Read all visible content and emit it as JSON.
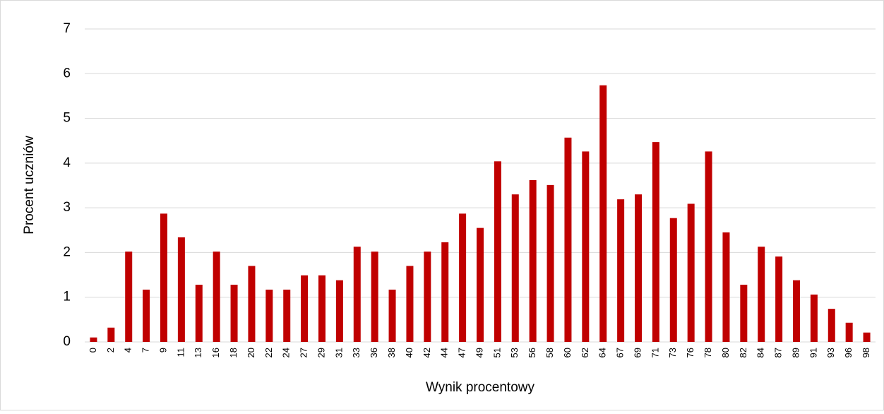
{
  "chart_data": {
    "type": "bar",
    "x_label": "Wynik procentowy",
    "y_label": "Procent uczniów",
    "categories": [
      "0",
      "2",
      "4",
      "7",
      "9",
      "11",
      "13",
      "16",
      "18",
      "20",
      "22",
      "24",
      "27",
      "29",
      "31",
      "33",
      "36",
      "38",
      "40",
      "42",
      "44",
      "47",
      "49",
      "51",
      "53",
      "56",
      "58",
      "60",
      "62",
      "64",
      "67",
      "69",
      "71",
      "73",
      "76",
      "78",
      "80",
      "82",
      "84",
      "87",
      "89",
      "91",
      "93",
      "96",
      "98"
    ],
    "values": [
      0.1,
      0.32,
      2.02,
      1.17,
      2.87,
      2.34,
      1.28,
      2.02,
      1.28,
      1.7,
      1.17,
      1.17,
      1.49,
      1.49,
      1.38,
      2.13,
      2.02,
      1.17,
      1.7,
      2.02,
      2.23,
      2.87,
      2.55,
      4.04,
      3.3,
      3.62,
      3.51,
      4.57,
      4.26,
      5.74,
      3.19,
      3.3,
      4.47,
      2.77,
      3.09,
      4.26,
      2.45,
      1.28,
      2.13,
      1.91,
      1.38,
      1.06,
      0.74,
      0.43,
      0.21
    ],
    "color": "#c00000",
    "ylim": [
      0,
      7
    ],
    "yticks": [
      0,
      1,
      2,
      3,
      4,
      5,
      6,
      7
    ],
    "grid": true
  }
}
